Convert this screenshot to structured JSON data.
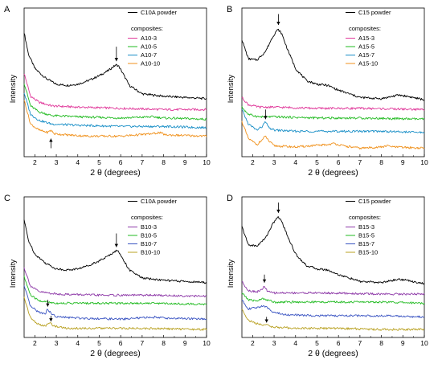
{
  "chart_data": [
    {
      "type": "line",
      "panel_label": "A",
      "xlabel": "2 θ (degrees)",
      "ylabel": "Intensity",
      "xlim": [
        1.5,
        10
      ],
      "x_ticks": [
        "2",
        "3",
        "4",
        "5",
        "6",
        "7",
        "8",
        "9",
        "10"
      ],
      "legend_header": "composites:",
      "series": [
        {
          "name": "C10A powder",
          "color": "#000000",
          "x": [
            1.5,
            1.7,
            2.0,
            2.5,
            3.0,
            3.5,
            4.0,
            4.5,
            5.0,
            5.4,
            5.7,
            5.8,
            5.9,
            6.1,
            6.4,
            7.0,
            8.0,
            9.0,
            10.0
          ],
          "y": [
            0.98,
            0.8,
            0.68,
            0.6,
            0.55,
            0.54,
            0.55,
            0.58,
            0.62,
            0.66,
            0.7,
            0.71,
            0.7,
            0.64,
            0.54,
            0.47,
            0.45,
            0.44,
            0.43
          ]
        },
        {
          "name": "A10-3",
          "color": "#e0389a",
          "x": [
            1.5,
            1.8,
            2.2,
            2.8,
            4.0,
            6.0,
            8.0,
            10.0
          ],
          "y": [
            0.64,
            0.45,
            0.4,
            0.37,
            0.36,
            0.35,
            0.34,
            0.34
          ]
        },
        {
          "name": "A10-5",
          "color": "#22bb22",
          "x": [
            1.5,
            1.8,
            2.2,
            2.8,
            4.0,
            6.0,
            7.5,
            8.0,
            10.0
          ],
          "y": [
            0.56,
            0.37,
            0.32,
            0.29,
            0.28,
            0.27,
            0.28,
            0.27,
            0.26
          ]
        },
        {
          "name": "A10-7",
          "color": "#1a8fc7",
          "x": [
            1.5,
            1.8,
            2.2,
            2.8,
            4.0,
            6.0,
            8.0,
            10.0
          ],
          "y": [
            0.48,
            0.3,
            0.25,
            0.22,
            0.21,
            0.2,
            0.2,
            0.19
          ]
        },
        {
          "name": "A10-10",
          "color": "#f0921e",
          "x": [
            1.5,
            1.8,
            2.2,
            2.6,
            2.75,
            2.9,
            3.5,
            4.5,
            6.0,
            7.5,
            7.8,
            8.1,
            10.0
          ],
          "y": [
            0.42,
            0.22,
            0.17,
            0.15,
            0.17,
            0.14,
            0.13,
            0.12,
            0.12,
            0.14,
            0.15,
            0.13,
            0.12
          ]
        }
      ],
      "annotations": [
        {
          "type": "arrow-down",
          "x": 5.8,
          "y_from": 0.86,
          "y_to": 0.74
        },
        {
          "type": "arrow-up",
          "x": 2.75,
          "y_from": 0.02,
          "y_to": 0.1
        }
      ]
    },
    {
      "type": "line",
      "panel_label": "B",
      "xlabel": "2 θ (degrees)",
      "ylabel": "Intensity",
      "xlim": [
        1.5,
        10
      ],
      "x_ticks": [
        "2",
        "3",
        "4",
        "5",
        "6",
        "7",
        "8",
        "9",
        "10"
      ],
      "legend_header": "composites:",
      "series": [
        {
          "name": "C15 powder",
          "color": "#000000",
          "x": [
            1.5,
            1.8,
            2.2,
            2.6,
            2.9,
            3.1,
            3.2,
            3.35,
            3.6,
            4.0,
            4.5,
            5.0,
            5.5,
            6.0,
            7.0,
            8.0,
            8.8,
            9.2,
            10.0
          ],
          "y": [
            0.92,
            0.76,
            0.75,
            0.82,
            0.93,
            0.99,
            1.0,
            0.97,
            0.85,
            0.68,
            0.58,
            0.55,
            0.54,
            0.5,
            0.44,
            0.43,
            0.46,
            0.45,
            0.42
          ]
        },
        {
          "name": "A15-3",
          "color": "#e0389a",
          "x": [
            1.5,
            1.8,
            2.3,
            3.0,
            5.0,
            7.0,
            10.0
          ],
          "y": [
            0.44,
            0.38,
            0.36,
            0.36,
            0.35,
            0.35,
            0.34
          ]
        },
        {
          "name": "A15-5",
          "color": "#22bb22",
          "x": [
            1.5,
            1.8,
            2.3,
            3.0,
            5.0,
            7.0,
            10.0
          ],
          "y": [
            0.36,
            0.3,
            0.28,
            0.28,
            0.27,
            0.27,
            0.26
          ]
        },
        {
          "name": "A15-7",
          "color": "#1a8fc7",
          "x": [
            1.5,
            1.8,
            2.2,
            2.45,
            2.6,
            2.75,
            3.0,
            4.0,
            6.0,
            8.0,
            10.0
          ],
          "y": [
            0.34,
            0.22,
            0.17,
            0.2,
            0.24,
            0.19,
            0.17,
            0.16,
            0.16,
            0.16,
            0.15
          ]
        },
        {
          "name": "A15-10",
          "color": "#f0921e",
          "x": [
            1.5,
            1.8,
            2.2,
            2.45,
            2.6,
            2.75,
            3.0,
            4.0,
            5.5,
            5.8,
            6.2,
            7.0,
            8.0,
            8.3,
            8.6,
            10.0
          ],
          "y": [
            0.24,
            0.1,
            0.05,
            0.09,
            0.12,
            0.08,
            0.04,
            0.03,
            0.05,
            0.06,
            0.04,
            0.02,
            0.03,
            0.04,
            0.03,
            0.02
          ]
        }
      ],
      "annotations": [
        {
          "type": "arrow-down",
          "x": 3.2,
          "y_from": 1.13,
          "y_to": 1.04
        },
        {
          "type": "arrow-down",
          "x": 2.6,
          "y_from": 0.34,
          "y_to": 0.26
        }
      ]
    },
    {
      "type": "line",
      "panel_label": "C",
      "xlabel": "2 θ (degrees)",
      "ylabel": "Intensity",
      "xlim": [
        1.5,
        10
      ],
      "x_ticks": [
        "2",
        "3",
        "4",
        "5",
        "6",
        "7",
        "8",
        "9",
        "10"
      ],
      "legend_header": "composites:",
      "series": [
        {
          "name": "C10A powder",
          "color": "#000000",
          "x": [
            1.5,
            1.7,
            2.0,
            2.5,
            3.0,
            3.5,
            4.0,
            4.5,
            5.0,
            5.4,
            5.7,
            5.8,
            5.9,
            6.1,
            6.4,
            7.0,
            8.0,
            9.0,
            10.0
          ],
          "y": [
            0.98,
            0.8,
            0.68,
            0.6,
            0.55,
            0.54,
            0.55,
            0.58,
            0.62,
            0.66,
            0.7,
            0.71,
            0.7,
            0.64,
            0.54,
            0.47,
            0.45,
            0.44,
            0.43
          ]
        },
        {
          "name": "B10-3",
          "color": "#8e3aa8",
          "x": [
            1.5,
            1.8,
            2.2,
            3.0,
            5.0,
            7.5,
            10.0
          ],
          "y": [
            0.56,
            0.4,
            0.35,
            0.33,
            0.32,
            0.32,
            0.31
          ]
        },
        {
          "name": "B10-5",
          "color": "#22bb22",
          "x": [
            1.5,
            1.8,
            2.2,
            3.0,
            5.0,
            7.5,
            10.0
          ],
          "y": [
            0.48,
            0.32,
            0.27,
            0.25,
            0.25,
            0.25,
            0.24
          ]
        },
        {
          "name": "B10-7",
          "color": "#3a54c2",
          "x": [
            1.5,
            1.8,
            2.2,
            2.5,
            2.6,
            2.75,
            3.0,
            4.0,
            6.0,
            7.7,
            8.0,
            10.0
          ],
          "y": [
            0.4,
            0.22,
            0.17,
            0.16,
            0.2,
            0.16,
            0.13,
            0.12,
            0.11,
            0.13,
            0.12,
            0.11
          ]
        },
        {
          "name": "B10-10",
          "color": "#b8a020",
          "x": [
            1.5,
            1.8,
            2.2,
            2.5,
            2.7,
            2.9,
            3.5,
            5.0,
            7.0,
            10.0
          ],
          "y": [
            0.3,
            0.12,
            0.06,
            0.05,
            0.08,
            0.05,
            0.03,
            0.03,
            0.03,
            0.02
          ]
        }
      ],
      "annotations": [
        {
          "type": "arrow-down",
          "x": 5.8,
          "y_from": 0.86,
          "y_to": 0.74
        },
        {
          "type": "arrow-down",
          "x": 2.6,
          "y_from": 0.28,
          "y_to": 0.22
        },
        {
          "type": "arrow-down",
          "x": 2.75,
          "y_from": 0.14,
          "y_to": 0.09
        }
      ]
    },
    {
      "type": "line",
      "panel_label": "D",
      "xlabel": "2 θ (degrees)",
      "ylabel": "Intensity",
      "xlim": [
        1.5,
        10
      ],
      "x_ticks": [
        "2",
        "3",
        "4",
        "5",
        "6",
        "7",
        "8",
        "9",
        "10"
      ],
      "legend_header": "composites:",
      "series": [
        {
          "name": "C15 powder",
          "color": "#000000",
          "x": [
            1.5,
            1.8,
            2.2,
            2.6,
            2.9,
            3.1,
            3.2,
            3.35,
            3.6,
            4.0,
            4.5,
            5.0,
            5.5,
            6.0,
            7.0,
            8.0,
            8.8,
            9.2,
            10.0
          ],
          "y": [
            0.92,
            0.76,
            0.75,
            0.82,
            0.93,
            0.99,
            1.0,
            0.97,
            0.85,
            0.68,
            0.58,
            0.55,
            0.54,
            0.5,
            0.44,
            0.43,
            0.46,
            0.45,
            0.42
          ]
        },
        {
          "name": "B15-3",
          "color": "#8e3aa8",
          "x": [
            1.5,
            1.8,
            2.2,
            2.45,
            2.55,
            2.7,
            3.0,
            5.0,
            8.0,
            10.0
          ],
          "y": [
            0.44,
            0.36,
            0.35,
            0.37,
            0.4,
            0.35,
            0.34,
            0.34,
            0.33,
            0.33
          ]
        },
        {
          "name": "B15-5",
          "color": "#22bb22",
          "x": [
            1.5,
            1.8,
            2.2,
            2.5,
            3.0,
            5.0,
            8.0,
            10.0
          ],
          "y": [
            0.34,
            0.28,
            0.27,
            0.29,
            0.26,
            0.26,
            0.26,
            0.25
          ]
        },
        {
          "name": "B15-7",
          "color": "#3a54c2",
          "x": [
            1.5,
            1.8,
            2.2,
            2.5,
            3.0,
            3.5,
            5.0,
            8.0,
            10.0
          ],
          "y": [
            0.28,
            0.2,
            0.21,
            0.23,
            0.17,
            0.15,
            0.14,
            0.14,
            0.13
          ]
        },
        {
          "name": "B15-10",
          "color": "#b8a020",
          "x": [
            1.5,
            1.8,
            2.2,
            2.6,
            3.0,
            4.0,
            6.0,
            8.0,
            10.0
          ],
          "y": [
            0.2,
            0.1,
            0.07,
            0.06,
            0.04,
            0.03,
            0.03,
            0.02,
            0.02
          ]
        }
      ],
      "annotations": [
        {
          "type": "arrow-down",
          "x": 3.2,
          "y_from": 1.13,
          "y_to": 1.04
        },
        {
          "type": "arrow-down",
          "x": 2.55,
          "y_from": 0.5,
          "y_to": 0.43
        },
        {
          "type": "arrow-down",
          "x": 2.65,
          "y_from": 0.13,
          "y_to": 0.08
        }
      ]
    }
  ]
}
